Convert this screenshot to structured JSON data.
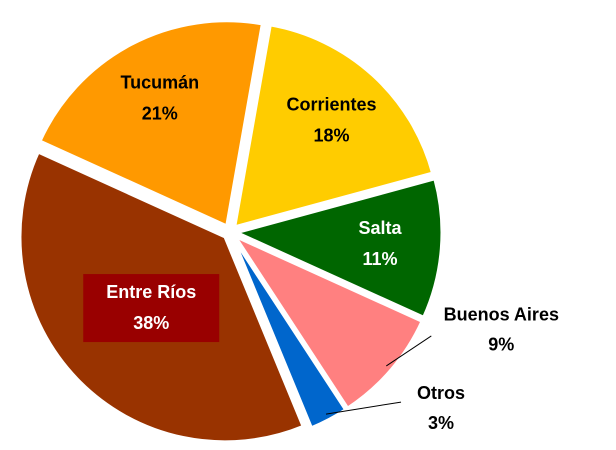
{
  "chart_data": {
    "type": "pie",
    "categories": [
      "Corrientes",
      "Salta",
      "Buenos Aires",
      "Otros",
      "Entre Ríos",
      "Tucumán"
    ],
    "values": [
      18,
      11,
      9,
      3,
      38,
      21
    ],
    "value_labels": [
      "18%",
      "11%",
      "9%",
      "3%",
      "38%",
      "21%"
    ],
    "colors": [
      "#ffcc00",
      "#006600",
      "#ff8080",
      "#0066cc",
      "#993300",
      "#ff9900"
    ]
  }
}
